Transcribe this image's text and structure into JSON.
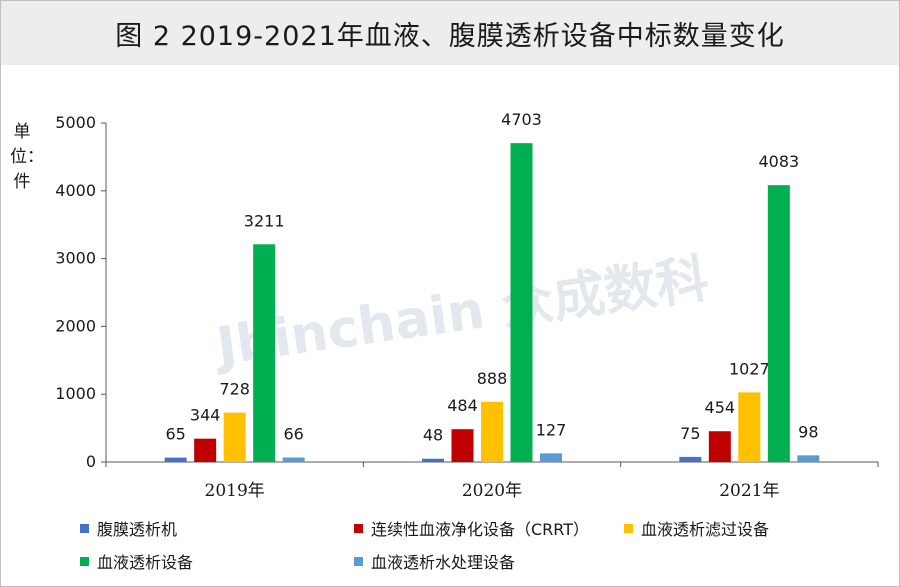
{
  "chart_data": {
    "type": "bar",
    "title": "图 2  2019-2021年血液、腹膜透析设备中标数量变化",
    "ylabel": "单位：件",
    "categories": [
      "2019年",
      "2020年",
      "2021年"
    ],
    "ylim": [
      0,
      5000
    ],
    "yticks": [
      0,
      1000,
      2000,
      3000,
      4000,
      5000
    ],
    "grid": false,
    "legend_position": "bottom",
    "series": [
      {
        "name": "腹膜透析机",
        "color": "#4472c4",
        "values": [
          65,
          48,
          75
        ]
      },
      {
        "name": "连续性血液净化设备（CRRT）",
        "color": "#c00000",
        "values": [
          344,
          484,
          454
        ]
      },
      {
        "name": "血液透析滤过设备",
        "color": "#ffc000",
        "values": [
          728,
          888,
          1027
        ]
      },
      {
        "name": "血液透析设备",
        "color": "#00b050",
        "values": [
          3211,
          4703,
          4083
        ]
      },
      {
        "name": "血液透析水处理设备",
        "color": "#5b9bd5",
        "values": [
          66,
          127,
          98
        ]
      }
    ],
    "watermark": "Jbinchain 众成数科"
  }
}
